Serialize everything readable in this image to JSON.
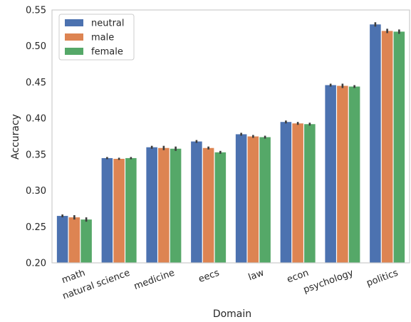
{
  "chart_data": {
    "type": "bar",
    "xlabel": "Domain",
    "ylabel": "Accuracy",
    "ylim": [
      0.2,
      0.55
    ],
    "yticks": [
      "0.20",
      "0.25",
      "0.30",
      "0.35",
      "0.40",
      "0.45",
      "0.50",
      "0.55"
    ],
    "grid": false,
    "legend_position": "top-left",
    "error_bars": true,
    "categories": [
      "math",
      "natural science",
      "medicine",
      "eecs",
      "law",
      "econ",
      "psychology",
      "politics"
    ],
    "series": [
      {
        "name": "neutral",
        "color": "#4c72b0",
        "values": [
          0.265,
          0.345,
          0.36,
          0.368,
          0.378,
          0.395,
          0.446,
          0.53
        ],
        "errors": [
          0.002,
          0.0015,
          0.002,
          0.002,
          0.002,
          0.002,
          0.002,
          0.003
        ]
      },
      {
        "name": "male",
        "color": "#dd8452",
        "values": [
          0.263,
          0.344,
          0.359,
          0.359,
          0.375,
          0.393,
          0.445,
          0.521
        ],
        "errors": [
          0.003,
          0.0015,
          0.003,
          0.002,
          0.002,
          0.002,
          0.003,
          0.003
        ]
      },
      {
        "name": "female",
        "color": "#55a868",
        "values": [
          0.26,
          0.345,
          0.358,
          0.353,
          0.374,
          0.392,
          0.444,
          0.52
        ],
        "errors": [
          0.003,
          0.0015,
          0.003,
          0.002,
          0.002,
          0.002,
          0.002,
          0.003
        ]
      }
    ]
  }
}
